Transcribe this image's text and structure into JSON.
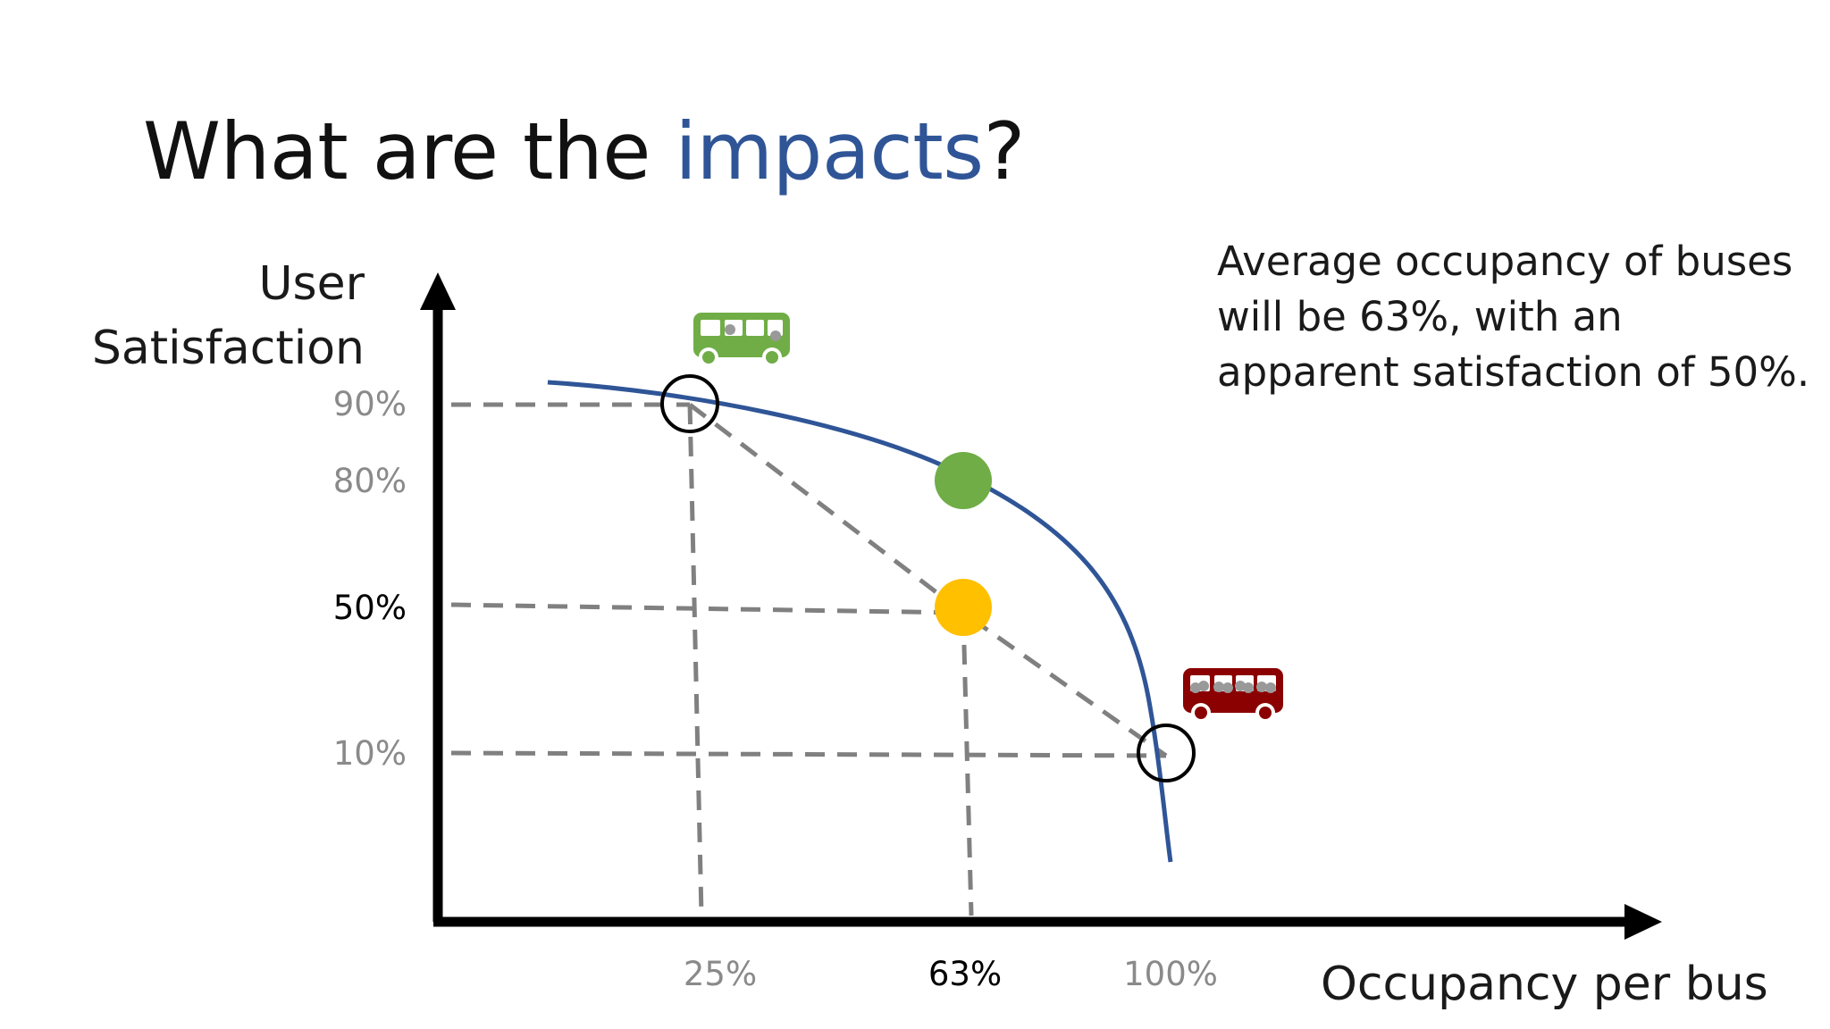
{
  "slide": {
    "title_prefix": "What are the ",
    "title_accent": "impacts",
    "title_suffix": "?",
    "accent_color": "#2F5597",
    "note_lines": [
      "Average occupancy of buses",
      "will be 63%, with an",
      "apparent satisfaction of 50%."
    ]
  },
  "diagram": {
    "y_axis_label_lines": [
      "User",
      "Satisfaction"
    ],
    "x_axis_label": "Occupancy per bus",
    "y_ticks": [
      {
        "label": "90%",
        "value": 90,
        "highlight": false
      },
      {
        "label": "80%",
        "value": 80,
        "highlight": false
      },
      {
        "label": "50%",
        "value": 50,
        "highlight": true
      },
      {
        "label": "10%",
        "value": 10,
        "highlight": false
      }
    ],
    "x_ticks": [
      {
        "label": "25%",
        "value": 25,
        "highlight": false
      },
      {
        "label": "63%",
        "value": 63,
        "highlight": true
      },
      {
        "label": "100%",
        "value": 100,
        "highlight": false
      }
    ],
    "curve_color": "#2F5597",
    "tick_gray": "#8a8a8a",
    "dash_gray": "#808080",
    "points": {
      "low_occupancy": {
        "occupancy": 25,
        "satisfaction": 90,
        "style": "open-circle"
      },
      "high_occupancy": {
        "occupancy": 100,
        "satisfaction": 10,
        "style": "open-circle"
      },
      "curve_at_average": {
        "occupancy": 63,
        "satisfaction": 80,
        "style": "filled",
        "color": "#70AD47"
      },
      "apparent": {
        "occupancy": 63,
        "satisfaction": 50,
        "style": "filled",
        "color": "#FFC000"
      }
    },
    "icons": {
      "empty_bus": {
        "name": "bus-icon-empty",
        "color": "#70AD47"
      },
      "full_bus": {
        "name": "bus-icon-crowded",
        "color": "#8B0000"
      }
    }
  }
}
